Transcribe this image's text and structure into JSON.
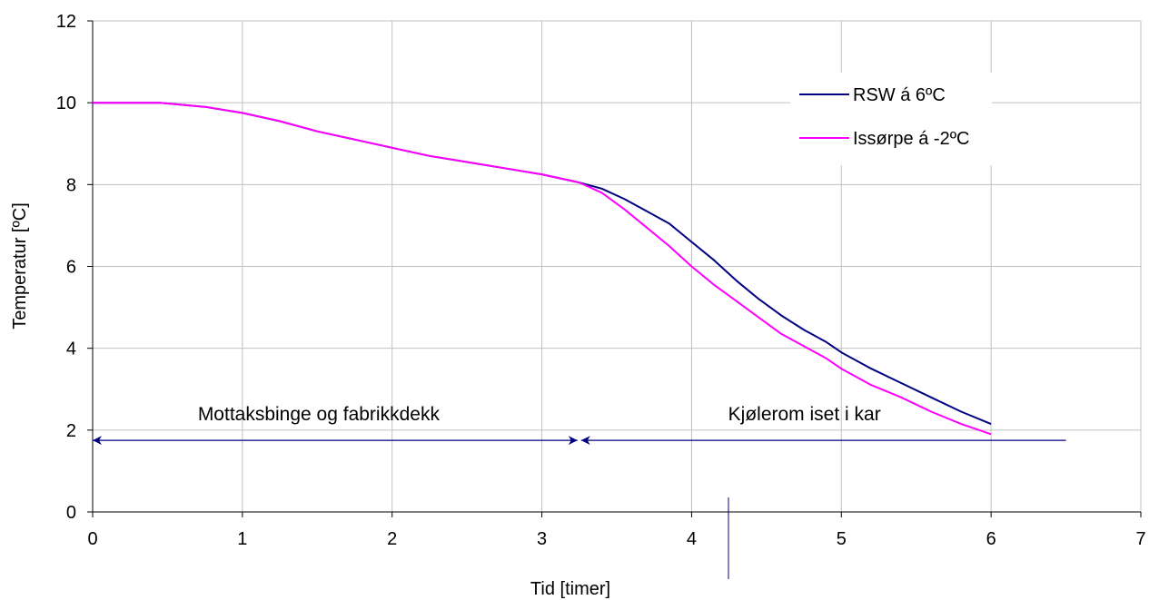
{
  "chart_data": {
    "type": "line",
    "title": "",
    "xlabel": "Tid  [timer]",
    "ylabel": "Temperatur  [ºC]",
    "xlim": [
      0,
      7
    ],
    "ylim": [
      0,
      12
    ],
    "xticks": [
      0,
      1,
      2,
      3,
      4,
      5,
      6,
      7
    ],
    "yticks": [
      0,
      2,
      4,
      6,
      8,
      10,
      12
    ],
    "grid": true,
    "legend_position": "top-right",
    "series": [
      {
        "name": "RSW á 6ºC",
        "color": "#000080",
        "x": [
          0,
          0.25,
          0.45,
          0.75,
          1.0,
          1.25,
          1.5,
          1.75,
          2.0,
          2.25,
          2.5,
          2.75,
          3.0,
          3.25,
          3.4,
          3.55,
          3.7,
          3.85,
          4.0,
          4.15,
          4.3,
          4.45,
          4.6,
          4.75,
          4.9,
          5.0,
          5.2,
          5.4,
          5.6,
          5.8,
          6.0
        ],
        "y": [
          10.0,
          10.0,
          10.0,
          9.9,
          9.75,
          9.55,
          9.3,
          9.1,
          8.9,
          8.7,
          8.55,
          8.4,
          8.25,
          8.05,
          7.9,
          7.65,
          7.35,
          7.05,
          6.6,
          6.15,
          5.65,
          5.2,
          4.8,
          4.45,
          4.15,
          3.9,
          3.5,
          3.15,
          2.8,
          2.45,
          2.15
        ]
      },
      {
        "name": "Issørpe á -2ºC",
        "color": "#ff00ff",
        "x": [
          0,
          0.25,
          0.45,
          0.75,
          1.0,
          1.25,
          1.5,
          1.75,
          2.0,
          2.25,
          2.5,
          2.75,
          3.0,
          3.25,
          3.4,
          3.55,
          3.7,
          3.85,
          4.0,
          4.15,
          4.3,
          4.45,
          4.6,
          4.75,
          4.9,
          5.0,
          5.2,
          5.4,
          5.6,
          5.8,
          6.0
        ],
        "y": [
          10.0,
          10.0,
          10.0,
          9.9,
          9.75,
          9.55,
          9.3,
          9.1,
          8.9,
          8.7,
          8.55,
          8.4,
          8.25,
          8.05,
          7.8,
          7.4,
          6.95,
          6.5,
          6.0,
          5.55,
          5.15,
          4.75,
          4.35,
          4.05,
          3.75,
          3.5,
          3.1,
          2.8,
          2.45,
          2.15,
          1.9
        ]
      }
    ],
    "annotations": [
      {
        "text": "Mottaksbinge og fabrikkdekk",
        "x_from": 0,
        "x_to": 3.25,
        "y": 1.75,
        "label_y": 2.4
      },
      {
        "text": "Kjølerom iset i kar",
        "x_from": 3.25,
        "x_to": 6.5,
        "y": 1.75,
        "label_y": 2.4
      }
    ],
    "annotation_color": "#000080"
  }
}
